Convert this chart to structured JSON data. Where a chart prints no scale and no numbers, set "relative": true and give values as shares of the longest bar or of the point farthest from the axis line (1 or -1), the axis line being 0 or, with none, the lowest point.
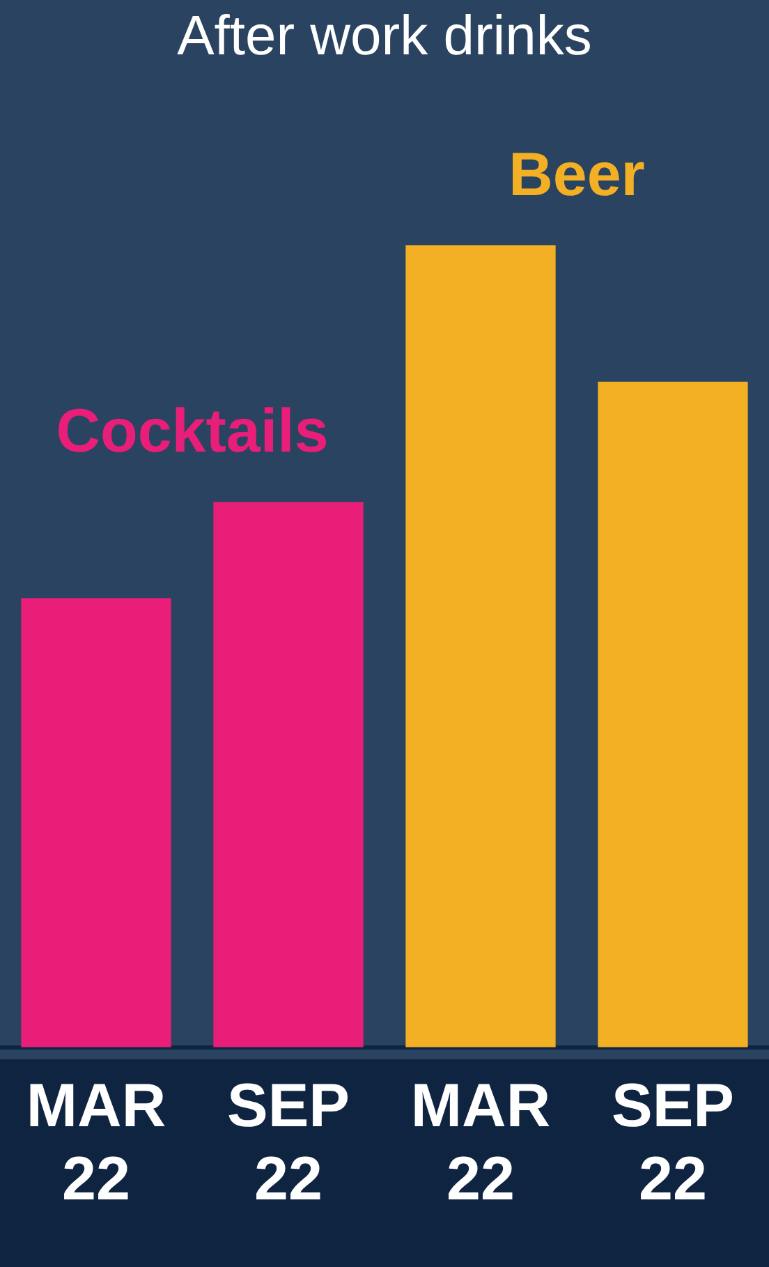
{
  "chart_data": {
    "type": "bar",
    "title": "After work drinks",
    "relative": true,
    "categories": [
      "MAR 22",
      "SEP 22",
      "MAR 22",
      "SEP 22"
    ],
    "series": [
      {
        "name": "Cocktails",
        "color": "#e91e78",
        "values": [
          0.56,
          0.68,
          null,
          null
        ]
      },
      {
        "name": "Beer",
        "color": "#f3b024",
        "values": [
          null,
          null,
          1,
          0.83
        ]
      }
    ],
    "grid": false,
    "legend": false
  }
}
